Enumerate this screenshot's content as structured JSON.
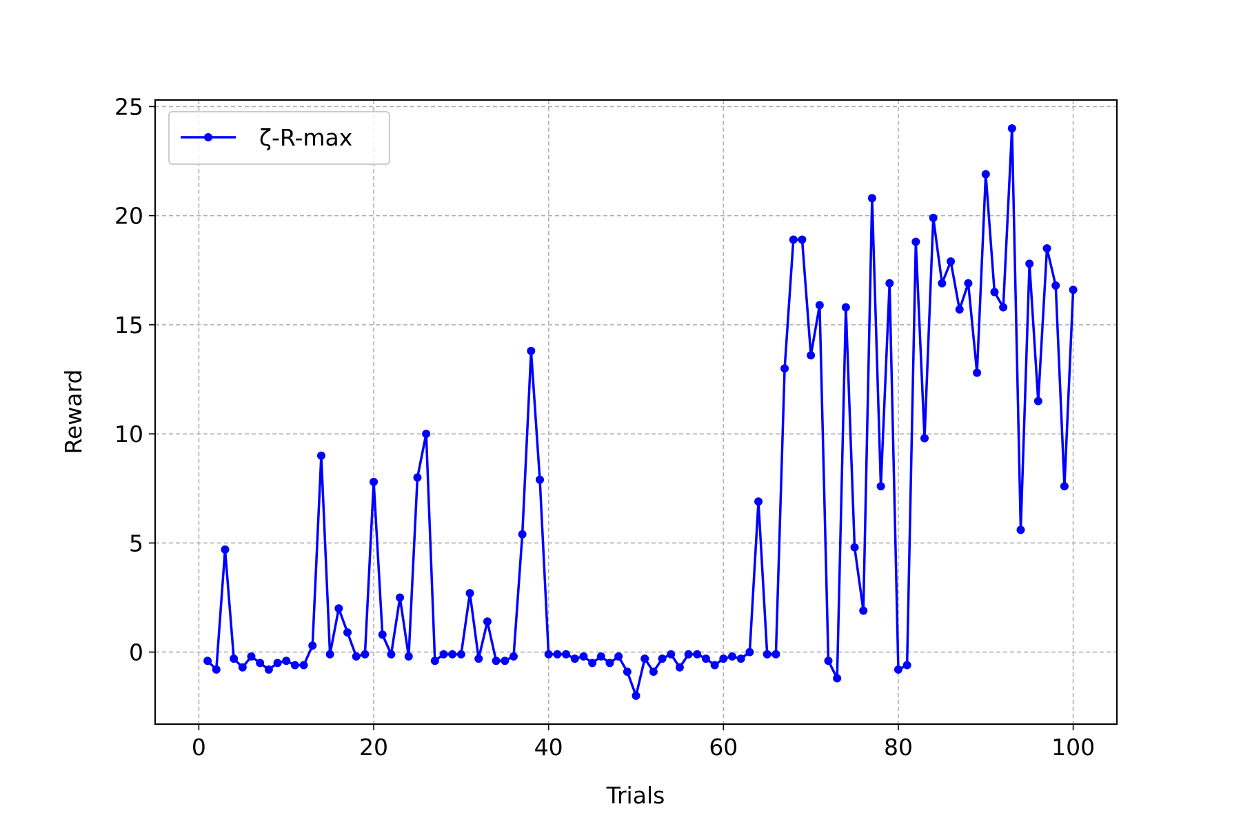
{
  "chart_data": {
    "type": "line",
    "title": "",
    "xlabel": "Trials",
    "ylabel": "Reward",
    "xlim": [
      -5,
      105
    ],
    "ylim": [
      -3.3,
      25.3
    ],
    "xticks": [
      0,
      20,
      40,
      60,
      80,
      100
    ],
    "yticks": [
      0,
      5,
      10,
      15,
      20,
      25
    ],
    "grid": true,
    "legend_position": "top-left",
    "series": [
      {
        "name": "ζ-R-max",
        "color": "#0000ff",
        "marker": "circle",
        "x": [
          1,
          2,
          3,
          4,
          5,
          6,
          7,
          8,
          9,
          10,
          11,
          12,
          13,
          14,
          15,
          16,
          17,
          18,
          19,
          20,
          21,
          22,
          23,
          24,
          25,
          26,
          27,
          28,
          29,
          30,
          31,
          32,
          33,
          34,
          35,
          36,
          37,
          38,
          39,
          40,
          41,
          42,
          43,
          44,
          45,
          46,
          47,
          48,
          49,
          50,
          51,
          52,
          53,
          54,
          55,
          56,
          57,
          58,
          59,
          60,
          61,
          62,
          63,
          64,
          65,
          66,
          67,
          68,
          69,
          70,
          71,
          72,
          73,
          74,
          75,
          76,
          77,
          78,
          79,
          80,
          81,
          82,
          83,
          84,
          85,
          86,
          87,
          88,
          89,
          90,
          91,
          92,
          93,
          94,
          95,
          96,
          97,
          98,
          99,
          100
        ],
        "values": [
          -0.4,
          -0.8,
          4.7,
          -0.3,
          -0.7,
          -0.2,
          -0.5,
          -0.8,
          -0.5,
          -0.4,
          -0.6,
          -0.6,
          0.3,
          9.0,
          -0.1,
          2.0,
          0.9,
          -0.2,
          -0.1,
          7.8,
          0.8,
          -0.1,
          2.5,
          -0.2,
          8.0,
          10.0,
          -0.4,
          -0.1,
          -0.1,
          -0.1,
          2.7,
          -0.3,
          1.4,
          -0.4,
          -0.4,
          -0.2,
          5.4,
          13.8,
          7.9,
          -0.1,
          -0.1,
          -0.1,
          -0.3,
          -0.2,
          -0.5,
          -0.2,
          -0.5,
          -0.2,
          -0.9,
          -2.0,
          -0.3,
          -0.9,
          -0.3,
          -0.1,
          -0.7,
          -0.1,
          -0.1,
          -0.3,
          -0.6,
          -0.3,
          -0.2,
          -0.3,
          0.0,
          6.9,
          -0.1,
          -0.1,
          13.0,
          18.9,
          18.9,
          13.6,
          15.9,
          -0.4,
          -1.2,
          15.8,
          4.8,
          1.9,
          20.8,
          7.6,
          16.9,
          -0.8,
          -0.6,
          18.8,
          9.8,
          19.9,
          16.9,
          17.9,
          15.7,
          16.9,
          12.8,
          21.9,
          16.5,
          15.8,
          24.0,
          5.6,
          17.8,
          11.5,
          18.5,
          16.8,
          7.6,
          16.6
        ]
      }
    ]
  }
}
